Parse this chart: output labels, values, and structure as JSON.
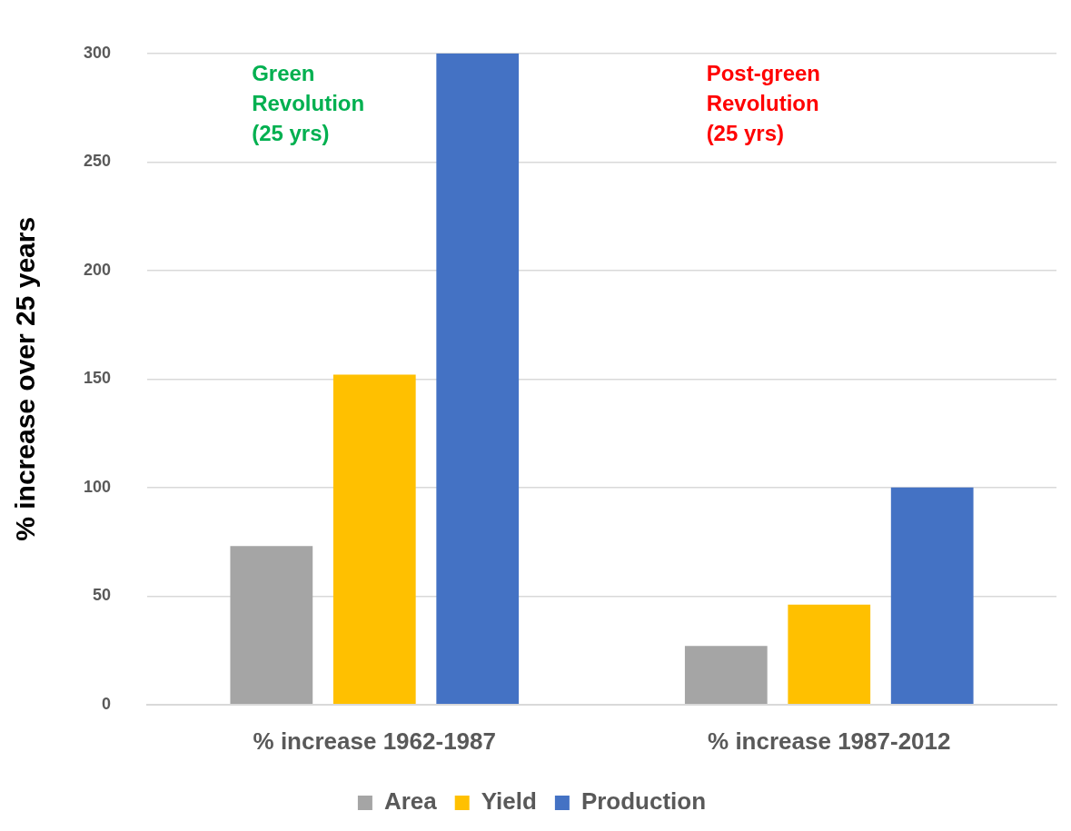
{
  "chart_data": {
    "type": "bar",
    "ylabel": "% increase over 25 years",
    "categories": [
      "% increase 1962-1987",
      "% increase 1987-2012"
    ],
    "series": [
      {
        "name": "Area",
        "color": "#a5a5a5",
        "values": [
          73,
          27
        ]
      },
      {
        "name": "Yield",
        "color": "#ffc000",
        "values": [
          152,
          46
        ]
      },
      {
        "name": "Production",
        "color": "#4472c4",
        "values": [
          300,
          100
        ]
      }
    ],
    "ylim": [
      0,
      300
    ],
    "yticks": [
      0,
      50,
      100,
      150,
      200,
      250,
      300
    ],
    "grid": "y",
    "legend": "bottom",
    "annotations": [
      "Green\nRevolution\n(25 yrs)",
      "Post-green\nRevolution\n(25 yrs)"
    ]
  }
}
